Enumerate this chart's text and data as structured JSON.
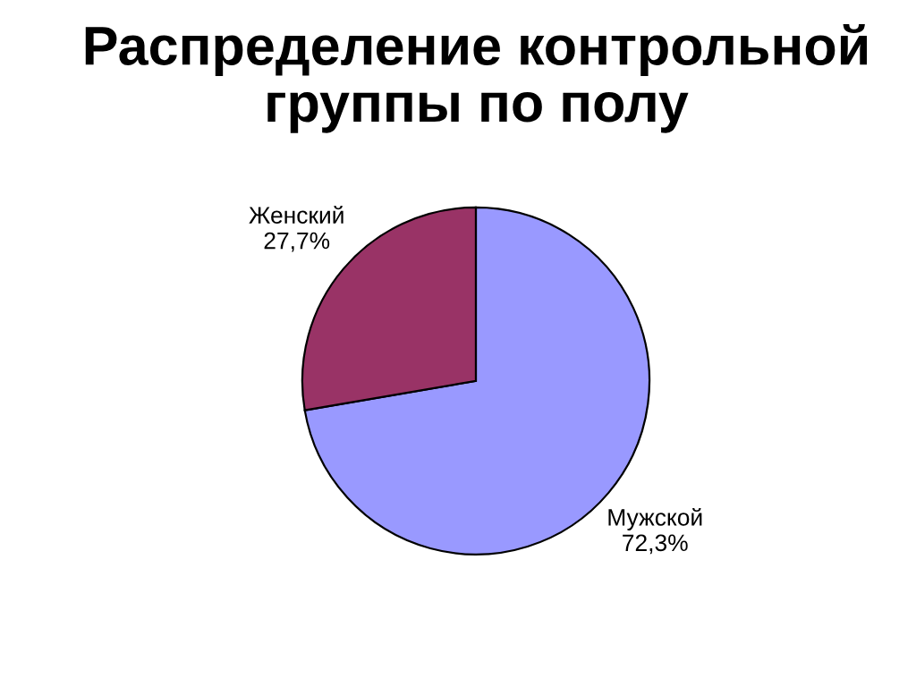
{
  "chart_data": {
    "type": "pie",
    "title": "Распределение контрольной\nгруппы по полу",
    "categories": [
      "Мужской",
      "Женский"
    ],
    "values": [
      72.3,
      27.7
    ],
    "value_labels": [
      "72,3%",
      "27,7%"
    ],
    "colors": [
      "#9999ff",
      "#993366"
    ],
    "legend": false
  }
}
